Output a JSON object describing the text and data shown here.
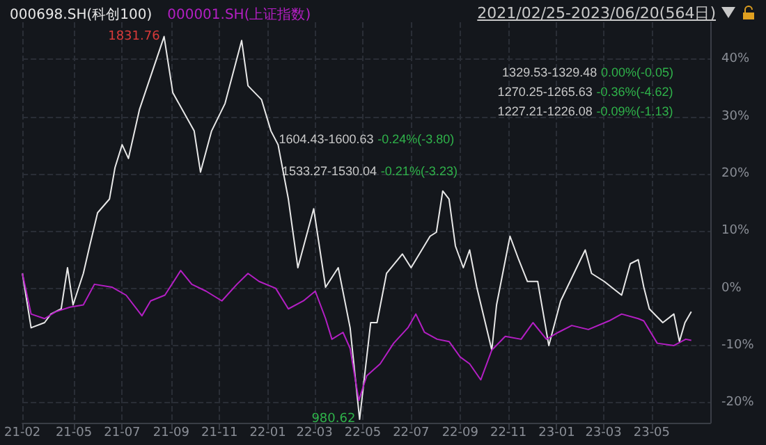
{
  "chart_data": {
    "type": "line",
    "subtitle": "2021/02/25-2023/06/20(564日)",
    "xlim": [
      "2021-02-25",
      "2023-07-14"
    ],
    "ylim": [
      -23.5,
      46.5
    ],
    "xticks": [
      {
        "value": "2021-02-25",
        "label": "21-02"
      },
      {
        "value": "2021-05-01",
        "label": "21-05"
      },
      {
        "value": "2021-07-01",
        "label": "21-07"
      },
      {
        "value": "2021-09-01",
        "label": "21-09"
      },
      {
        "value": "2021-11-01",
        "label": "21-11"
      },
      {
        "value": "2022-01-01",
        "label": "22-01"
      },
      {
        "value": "2022-03-01",
        "label": "22-03"
      },
      {
        "value": "2022-05-01",
        "label": "22-05"
      },
      {
        "value": "2022-07-01",
        "label": "22-07"
      },
      {
        "value": "2022-09-01",
        "label": "22-09"
      },
      {
        "value": "2022-11-01",
        "label": "22-11"
      },
      {
        "value": "2023-01-01",
        "label": "23-01"
      },
      {
        "value": "2023-03-01",
        "label": "23-03"
      },
      {
        "value": "2023-05-01",
        "label": "23-05"
      }
    ],
    "yticks": [
      {
        "value": -20,
        "label": "-20%"
      },
      {
        "value": -10,
        "label": "-10%"
      },
      {
        "value": 0,
        "label": "0%"
      },
      {
        "value": 10,
        "label": "10%"
      },
      {
        "value": 20,
        "label": "20%"
      },
      {
        "value": 30,
        "label": "30%"
      },
      {
        "value": 40,
        "label": "40%"
      }
    ],
    "grid": true,
    "legend": "top left",
    "marker": "none",
    "line_style": "solid",
    "series": [
      {
        "name": "000698.SH(科创100)",
        "color": "#e8e8e8",
        "x": [
          "2021-02-25",
          "2021-03-08",
          "2021-03-25",
          "2021-04-02",
          "2021-04-15",
          "2021-04-23",
          "2021-04-30",
          "2021-05-13",
          "2021-05-21",
          "2021-05-31",
          "2021-06-15",
          "2021-06-22",
          "2021-07-01",
          "2021-07-09",
          "2021-07-23",
          "2021-08-02",
          "2021-08-23",
          "2021-09-03",
          "2021-09-30",
          "2021-10-08",
          "2021-10-22",
          "2021-11-08",
          "2021-11-29",
          "2021-12-07",
          "2021-12-24",
          "2022-01-05",
          "2022-01-14",
          "2022-01-27",
          "2022-02-08",
          "2022-02-28",
          "2022-03-15",
          "2022-03-31",
          "2022-04-15",
          "2022-04-27",
          "2022-05-11",
          "2022-05-19",
          "2022-05-31",
          "2022-06-20",
          "2022-07-01",
          "2022-07-25",
          "2022-08-02",
          "2022-08-10",
          "2022-08-18",
          "2022-08-26",
          "2022-09-05",
          "2022-09-13",
          "2022-09-22",
          "2022-10-11",
          "2022-10-17",
          "2022-11-03",
          "2022-11-14",
          "2022-11-25",
          "2022-12-08",
          "2022-12-22",
          "2023-01-06",
          "2023-01-31",
          "2023-02-06",
          "2023-02-14",
          "2023-03-02",
          "2023-03-24",
          "2023-04-04",
          "2023-04-14",
          "2023-04-21",
          "2023-04-28",
          "2023-05-15",
          "2023-05-29",
          "2023-06-05",
          "2023-06-12",
          "2023-06-20"
        ],
        "values": [
          2.6,
          -6.9,
          -6.0,
          -4.5,
          -3.6,
          3.6,
          -2.9,
          2.6,
          7.4,
          13.2,
          15.6,
          21.1,
          25.1,
          22.7,
          31.3,
          35.4,
          44.0,
          34.2,
          27.5,
          20.3,
          27.5,
          32.3,
          43.3,
          35.4,
          33.0,
          27.5,
          25.1,
          15.6,
          3.6,
          13.9,
          0.2,
          3.6,
          -6.9,
          -22.9,
          -6.0,
          -6.0,
          2.6,
          6.0,
          3.6,
          9.1,
          9.8,
          17.0,
          15.6,
          7.4,
          3.6,
          6.7,
          0.2,
          -10.8,
          -2.9,
          9.1,
          5.0,
          1.2,
          1.2,
          -10.0,
          -2.2,
          5.0,
          6.7,
          2.6,
          1.2,
          -1.2,
          4.3,
          5.0,
          0.2,
          -3.6,
          -6.0,
          -4.5,
          -9.3,
          -6.0,
          -4.1
        ]
      },
      {
        "name": "000001.SH(上证指数)",
        "color": "#b41fc4",
        "x": [
          "2021-02-25",
          "2021-03-08",
          "2021-03-25",
          "2021-04-08",
          "2021-04-26",
          "2021-05-13",
          "2021-05-27",
          "2021-06-18",
          "2021-07-06",
          "2021-07-26",
          "2021-08-06",
          "2021-08-24",
          "2021-09-13",
          "2021-09-27",
          "2021-10-15",
          "2021-11-04",
          "2021-11-23",
          "2021-12-07",
          "2021-12-21",
          "2022-01-11",
          "2022-01-27",
          "2022-02-15",
          "2022-03-02",
          "2022-03-15",
          "2022-03-23",
          "2022-04-06",
          "2022-04-15",
          "2022-04-26",
          "2022-05-06",
          "2022-05-23",
          "2022-06-09",
          "2022-06-27",
          "2022-07-07",
          "2022-07-18",
          "2022-08-03",
          "2022-08-18",
          "2022-09-01",
          "2022-09-13",
          "2022-09-27",
          "2022-10-11",
          "2022-10-28",
          "2022-11-17",
          "2022-12-02",
          "2022-12-19",
          "2023-01-03",
          "2023-01-20",
          "2023-02-10",
          "2023-03-08",
          "2023-03-24",
          "2023-04-14",
          "2023-04-21",
          "2023-05-08",
          "2023-05-29",
          "2023-06-13",
          "2023-06-20"
        ],
        "values": [
          2.6,
          -4.5,
          -5.3,
          -4.1,
          -3.3,
          -2.9,
          0.7,
          0.2,
          -1.2,
          -4.8,
          -2.2,
          -1.2,
          3.1,
          0.7,
          -0.5,
          -2.2,
          0.7,
          2.6,
          1.2,
          0,
          -3.6,
          -2.2,
          -0.5,
          -5.3,
          -8.9,
          -7.7,
          -10.5,
          -19.6,
          -15.3,
          -13.2,
          -9.6,
          -6.9,
          -4.5,
          -7.7,
          -8.9,
          -9.3,
          -12.0,
          -13.2,
          -16.0,
          -10.8,
          -8.4,
          -8.9,
          -6.0,
          -8.9,
          -7.7,
          -6.5,
          -7.2,
          -5.7,
          -4.5,
          -5.3,
          -5.7,
          -9.6,
          -10.0,
          -8.9,
          -9.1
        ]
      }
    ],
    "annotations": [
      {
        "text": "1831.76",
        "x": "2021-08-23",
        "y": 44.0
      },
      {
        "text": "980.62",
        "x": "2022-04-27",
        "y": -22.9
      },
      {
        "text": "1604.43-1600.63 -0.24%(-3.80)",
        "x": "2022-01-15",
        "y": 26.1
      },
      {
        "text": "1533.27-1530.04 -0.21%(-3.23)",
        "x": "2022-01-19",
        "y": 20.5
      },
      "1329.53-1329.48 0.00%(-0.05)",
      "1270.25-1265.63 -0.36%(-4.62)",
      "1227.21-1226.08 -0.09%(-1.13)"
    ]
  }
}
